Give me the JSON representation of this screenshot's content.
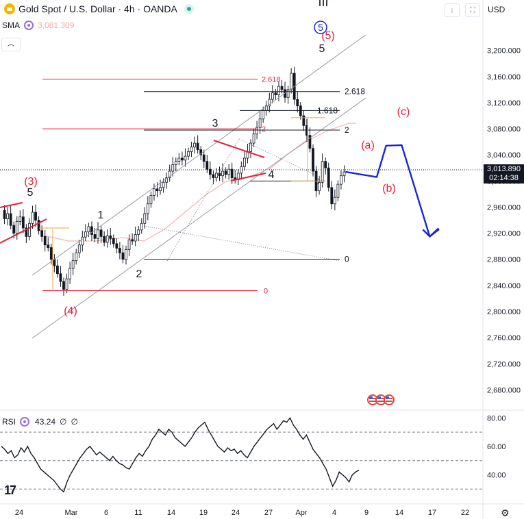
{
  "header": {
    "title": "Gold Spot / U.S. Dollar · 4h · OANDA",
    "down_arrow_glyph": "↓",
    "fullscreen_glyph": "⛶",
    "currency": "USD"
  },
  "indicator": {
    "name": "SMA",
    "value": "3,081.309",
    "collapse_glyph": "︿"
  },
  "rsi": {
    "name": "RSI",
    "value": "43.24",
    "sym1": "∅",
    "sym2": "∅"
  },
  "price_tag": {
    "price": "3,013.890",
    "countdown": "02:14:38"
  },
  "colors": {
    "candle": "#131722",
    "sma": "#f2b3b3",
    "fib_red": "#e0203a",
    "fib_black": "#131722",
    "orange": "#f2a43a",
    "wave_red": "#e0203a",
    "wave_blue": "#1625d6",
    "channel": "#9598a1"
  },
  "chart_data": {
    "type": "candlestick",
    "instrument": "Gold Spot / U.S. Dollar",
    "timeframe": "4h",
    "source": "OANDA",
    "currency": "USD",
    "y_range": [
      2650,
      3250
    ],
    "y_ticks": [
      "3,200.000",
      "3,160.000",
      "3,120.000",
      "3,080.000",
      "3,040.000",
      "3,000.000",
      "2,960.000",
      "2,920.000",
      "2,880.000",
      "2,840.000",
      "2,800.000",
      "2,760.000",
      "2,720.000",
      "2,680.000"
    ],
    "x_ticks": [
      "24",
      "Mar",
      "6",
      "11",
      "14",
      "19",
      "24",
      "27",
      "Apr",
      "4",
      "9",
      "14",
      "17",
      "22"
    ],
    "last_price": 3013.89,
    "series_path": [
      {
        "x": 0,
        "y": 2955
      },
      {
        "x": 1,
        "y": 2942
      },
      {
        "x": 2,
        "y": 2950
      },
      {
        "x": 3,
        "y": 2932
      },
      {
        "x": 4,
        "y": 2920
      },
      {
        "x": 5,
        "y": 2938
      },
      {
        "x": 6,
        "y": 2945
      },
      {
        "x": 7,
        "y": 2928
      },
      {
        "x": 8,
        "y": 2915
      },
      {
        "x": 9,
        "y": 2935
      },
      {
        "x": 10,
        "y": 2952
      },
      {
        "x": 11,
        "y": 2940
      },
      {
        "x": 12,
        "y": 2924
      },
      {
        "x": 13,
        "y": 2915
      },
      {
        "x": 14,
        "y": 2902
      },
      {
        "x": 15,
        "y": 2898
      },
      {
        "x": 16,
        "y": 2880
      },
      {
        "x": 17,
        "y": 2870
      },
      {
        "x": 18,
        "y": 2858
      },
      {
        "x": 19,
        "y": 2846
      },
      {
        "x": 20,
        "y": 2834
      },
      {
        "x": 21,
        "y": 2850
      },
      {
        "x": 22,
        "y": 2866
      },
      {
        "x": 23,
        "y": 2878
      },
      {
        "x": 24,
        "y": 2890
      },
      {
        "x": 25,
        "y": 2902
      },
      {
        "x": 26,
        "y": 2914
      },
      {
        "x": 27,
        "y": 2922
      },
      {
        "x": 28,
        "y": 2930
      },
      {
        "x": 29,
        "y": 2918
      },
      {
        "x": 30,
        "y": 2912
      },
      {
        "x": 31,
        "y": 2925
      },
      {
        "x": 32,
        "y": 2915
      },
      {
        "x": 33,
        "y": 2906
      },
      {
        "x": 34,
        "y": 2916
      },
      {
        "x": 35,
        "y": 2912
      },
      {
        "x": 36,
        "y": 2904
      },
      {
        "x": 37,
        "y": 2897
      },
      {
        "x": 38,
        "y": 2890
      },
      {
        "x": 39,
        "y": 2880
      },
      {
        "x": 40,
        "y": 2895
      },
      {
        "x": 41,
        "y": 2910
      },
      {
        "x": 42,
        "y": 2908
      },
      {
        "x": 43,
        "y": 2918
      },
      {
        "x": 44,
        "y": 2925
      },
      {
        "x": 45,
        "y": 2935
      },
      {
        "x": 46,
        "y": 2950
      },
      {
        "x": 47,
        "y": 2965
      },
      {
        "x": 48,
        "y": 2978
      },
      {
        "x": 49,
        "y": 2988
      },
      {
        "x": 50,
        "y": 2985
      },
      {
        "x": 51,
        "y": 2990
      },
      {
        "x": 52,
        "y": 2998
      },
      {
        "x": 53,
        "y": 3005
      },
      {
        "x": 54,
        "y": 3015
      },
      {
        "x": 55,
        "y": 3025
      },
      {
        "x": 56,
        "y": 3030
      },
      {
        "x": 57,
        "y": 3035
      },
      {
        "x": 58,
        "y": 3032
      },
      {
        "x": 59,
        "y": 3038
      },
      {
        "x": 60,
        "y": 3045
      },
      {
        "x": 61,
        "y": 3052
      },
      {
        "x": 62,
        "y": 3058
      },
      {
        "x": 63,
        "y": 3048
      },
      {
        "x": 64,
        "y": 3040
      },
      {
        "x": 65,
        "y": 3030
      },
      {
        "x": 66,
        "y": 3018
      },
      {
        "x": 67,
        "y": 3010
      },
      {
        "x": 68,
        "y": 3005
      },
      {
        "x": 69,
        "y": 3012
      },
      {
        "x": 70,
        "y": 3008
      },
      {
        "x": 71,
        "y": 3015
      },
      {
        "x": 72,
        "y": 3010
      },
      {
        "x": 73,
        "y": 3018
      },
      {
        "x": 74,
        "y": 3005
      },
      {
        "x": 75,
        "y": 3002
      },
      {
        "x": 76,
        "y": 3012
      },
      {
        "x": 77,
        "y": 3022
      },
      {
        "x": 78,
        "y": 3035
      },
      {
        "x": 79,
        "y": 3045
      },
      {
        "x": 80,
        "y": 3058
      },
      {
        "x": 81,
        "y": 3072
      },
      {
        "x": 82,
        "y": 3082
      },
      {
        "x": 83,
        "y": 3095
      },
      {
        "x": 84,
        "y": 3108
      },
      {
        "x": 85,
        "y": 3115
      },
      {
        "x": 86,
        "y": 3125
      },
      {
        "x": 87,
        "y": 3135
      },
      {
        "x": 88,
        "y": 3132
      },
      {
        "x": 89,
        "y": 3145
      },
      {
        "x": 90,
        "y": 3140
      },
      {
        "x": 91,
        "y": 3128
      },
      {
        "x": 92,
        "y": 3140
      },
      {
        "x": 93,
        "y": 3165
      },
      {
        "x": 94,
        "y": 3125
      },
      {
        "x": 95,
        "y": 3115
      },
      {
        "x": 96,
        "y": 3100
      },
      {
        "x": 97,
        "y": 3085
      },
      {
        "x": 98,
        "y": 3070
      },
      {
        "x": 99,
        "y": 3050
      },
      {
        "x": 100,
        "y": 3015
      },
      {
        "x": 101,
        "y": 2985
      },
      {
        "x": 102,
        "y": 2998
      },
      {
        "x": 103,
        "y": 3030
      },
      {
        "x": 104,
        "y": 3020
      },
      {
        "x": 105,
        "y": 2990
      },
      {
        "x": 106,
        "y": 2965
      },
      {
        "x": 107,
        "y": 2975
      },
      {
        "x": 108,
        "y": 2995
      },
      {
        "x": 109,
        "y": 3008
      },
      {
        "x": 110,
        "y": 3014
      }
    ],
    "projection": [
      {
        "x": 110,
        "y": 3014
      },
      {
        "x": 120,
        "y": 3006
      },
      {
        "x": 123,
        "y": 3054
      },
      {
        "x": 128,
        "y": 3055
      },
      {
        "x": 137,
        "y": 2915
      },
      {
        "x": 140,
        "y": 2926
      }
    ],
    "fib_red": [
      {
        "label": "2.618",
        "price": 3156
      },
      {
        "label": "2",
        "price": 3080
      },
      {
        "label": "0",
        "price": 2832
      }
    ],
    "fib_black": [
      {
        "label": "2.618",
        "price": 3137
      },
      {
        "label": "1.618",
        "price": 3108
      },
      {
        "label": "2",
        "price": 3078
      },
      {
        "label": "0",
        "price": 2880
      }
    ],
    "fib_small": {
      "label": "0",
      "price": 3000
    },
    "wave_labels": [
      {
        "text": "(3)",
        "color": "red",
        "x": 4,
        "price": 2990
      },
      {
        "text": "5",
        "color": "black",
        "x": 4,
        "price": 2976
      },
      {
        "text": "(4)",
        "color": "red",
        "x": 21,
        "price": 2810
      },
      {
        "text": "1",
        "color": "black",
        "x": 30,
        "price": 2945
      },
      {
        "text": "2",
        "color": "black",
        "x": 41,
        "price": 2860
      },
      {
        "text": "3",
        "color": "black",
        "x": 64,
        "price": 3073
      },
      {
        "text": "4",
        "color": "black",
        "x": 80,
        "price": 3004
      },
      {
        "text": "5",
        "color": "black",
        "x": 96,
        "price": 3187
      },
      {
        "text": "(5)",
        "color": "red",
        "x": 99,
        "price": 3212
      },
      {
        "text": "5",
        "color": "blue-circle",
        "x": 96,
        "price": 3232
      },
      {
        "text": "III",
        "color": "black",
        "x": 96,
        "price": 3260
      },
      {
        "text": "(a)",
        "color": "red",
        "x": 112,
        "price": 3044
      },
      {
        "text": "(b)",
        "color": "red",
        "x": 118,
        "price": 2981
      },
      {
        "text": "(c)",
        "color": "red",
        "x": 123,
        "price": 3096
      }
    ],
    "rsi": {
      "range": [
        20,
        85
      ],
      "ticks": [
        "80.00",
        "60.00",
        "40.00"
      ],
      "bands": [
        70,
        50,
        30
      ],
      "value": 43.24,
      "values": [
        60,
        58,
        55,
        57,
        52,
        54,
        59,
        56,
        60,
        55,
        52,
        48,
        44,
        42,
        40,
        38,
        36,
        33,
        30,
        28,
        35,
        40,
        44,
        48,
        52,
        55,
        58,
        60,
        57,
        54,
        56,
        54,
        52,
        50,
        53,
        50,
        48,
        47,
        45,
        44,
        48,
        52,
        55,
        53,
        57,
        60,
        65,
        68,
        72,
        70,
        68,
        72,
        70,
        66,
        64,
        62,
        60,
        63,
        66,
        70,
        73,
        75,
        77,
        72,
        68,
        64,
        60,
        58,
        56,
        59,
        57,
        58,
        55,
        57,
        54,
        52,
        56,
        60,
        63,
        66,
        69,
        72,
        74,
        76,
        72,
        75,
        78,
        77,
        80,
        75,
        72,
        68,
        65,
        68,
        63,
        58,
        55,
        52,
        48,
        44,
        38,
        32,
        36,
        42,
        40,
        38,
        35,
        40,
        42,
        43.24
      ]
    }
  }
}
